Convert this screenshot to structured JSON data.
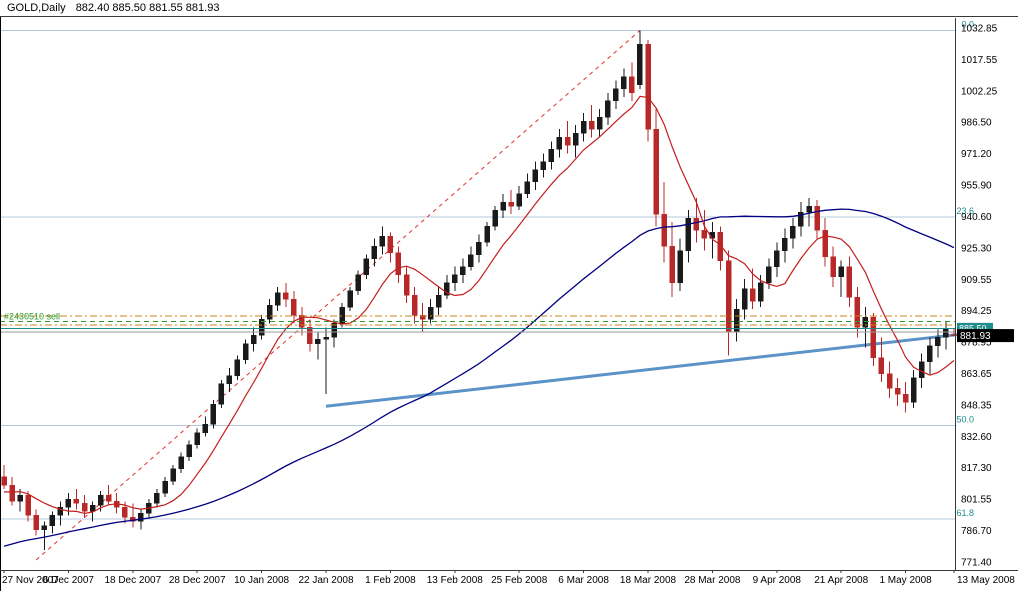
{
  "header": {
    "symbol_period": "GOLD,Daily",
    "ohlc": "882.40 885.50 881.55 881.93"
  },
  "axes": {
    "y_labels": [
      "1032.85",
      "1017.55",
      "1002.25",
      "986.50",
      "971.20",
      "955.90",
      "940.60",
      "925.30",
      "909.55",
      "894.25",
      "878.95",
      "863.65",
      "848.35",
      "832.60",
      "817.30",
      "801.55",
      "786.70",
      "771.40"
    ],
    "x_labels": [
      {
        "index": 0,
        "label": "27 Nov 2007"
      },
      {
        "index": 8,
        "label": "6 Dec 2007"
      },
      {
        "index": 16,
        "label": "18 Dec 2007"
      },
      {
        "index": 24,
        "label": "28 Dec 2007"
      },
      {
        "index": 32,
        "label": "10 Jan 2008"
      },
      {
        "index": 40,
        "label": "22 Jan 2008"
      },
      {
        "index": 48,
        "label": "1 Feb 2008"
      },
      {
        "index": 56,
        "label": "13 Feb 2008"
      },
      {
        "index": 64,
        "label": "25 Feb 2008"
      },
      {
        "index": 72,
        "label": "6 Mar 2008"
      },
      {
        "index": 80,
        "label": "18 Mar 2008"
      },
      {
        "index": 88,
        "label": "28 Mar 2008"
      },
      {
        "index": 96,
        "label": "9 Apr 2008"
      },
      {
        "index": 104,
        "label": "21 Apr 2008"
      },
      {
        "index": 112,
        "label": "1 May 2008"
      },
      {
        "index": 118,
        "label": "13 May 2008"
      }
    ]
  },
  "markers": {
    "bid_box": {
      "value": "881.93",
      "price": 881.93
    },
    "ask_box": {
      "value": "885.50",
      "price": 885.5
    }
  },
  "colors": {
    "bull": "#1a1a1a",
    "bear": "#b92828",
    "ma_fast": "#c41e1e",
    "ma_slow": "#000080",
    "fib_line": "#b4c8dc",
    "fib_label": "#1e8c8c",
    "trend_red": "#e03030",
    "trend_blue": "#5b93c9",
    "sell_line": "#2a9a2a",
    "order_orange": "#c8861e",
    "gray_line": "#9a9a9a",
    "axis_text": "#000000",
    "frame": "#3a3a3a",
    "bid_box_bg": "#000000",
    "bid_box_text": "#ffffff",
    "ask_box_bg": "#1e8c8c",
    "ask_box_text": "#ffffff"
  },
  "chart_data": {
    "type": "candlestick",
    "symbol": "GOLD",
    "timeframe": "Daily",
    "title": "GOLD,Daily",
    "last_ohlc": {
      "open": 882.4,
      "high": 885.5,
      "low": 881.55,
      "close": 881.93
    },
    "y_range": {
      "price_at_top": 1039.0,
      "price_at_bottom": 766.0
    },
    "candles": [
      [
        812,
        818,
        806,
        808
      ],
      [
        808,
        812,
        798,
        800
      ],
      [
        800,
        806,
        795,
        803
      ],
      [
        803,
        805,
        790,
        793
      ],
      [
        793,
        796,
        783,
        786
      ],
      [
        786,
        790,
        776,
        788
      ],
      [
        788,
        795,
        784,
        793
      ],
      [
        793,
        800,
        788,
        797
      ],
      [
        797,
        804,
        793,
        801
      ],
      [
        801,
        806,
        796,
        799
      ],
      [
        799,
        803,
        792,
        795
      ],
      [
        795,
        800,
        790,
        798
      ],
      [
        798,
        805,
        795,
        803
      ],
      [
        803,
        808,
        798,
        800
      ],
      [
        800,
        804,
        794,
        797
      ],
      [
        797,
        800,
        789,
        792
      ],
      [
        792,
        799,
        787,
        790
      ],
      [
        790,
        796,
        786,
        794
      ],
      [
        794,
        801,
        792,
        799
      ],
      [
        799,
        806,
        797,
        804
      ],
      [
        804,
        812,
        802,
        810
      ],
      [
        810,
        818,
        808,
        816
      ],
      [
        816,
        824,
        814,
        822
      ],
      [
        822,
        830,
        820,
        828
      ],
      [
        828,
        836,
        826,
        834
      ],
      [
        834,
        842,
        832,
        838
      ],
      [
        838,
        850,
        836,
        848
      ],
      [
        848,
        860,
        846,
        858
      ],
      [
        858,
        866,
        854,
        862
      ],
      [
        862,
        872,
        860,
        870
      ],
      [
        870,
        880,
        868,
        878
      ],
      [
        878,
        886,
        874,
        882
      ],
      [
        882,
        892,
        880,
        890
      ],
      [
        890,
        900,
        888,
        897
      ],
      [
        897,
        906,
        894,
        903
      ],
      [
        903,
        908,
        896,
        900
      ],
      [
        900,
        904,
        888,
        892
      ],
      [
        892,
        896,
        882,
        886
      ],
      [
        886,
        890,
        874,
        878
      ],
      [
        878,
        884,
        870,
        880
      ],
      [
        880,
        886,
        853,
        881
      ],
      [
        881,
        890,
        876,
        888
      ],
      [
        888,
        898,
        886,
        896
      ],
      [
        896,
        906,
        894,
        904
      ],
      [
        904,
        914,
        902,
        912
      ],
      [
        912,
        922,
        910,
        920
      ],
      [
        920,
        930,
        916,
        926
      ],
      [
        926,
        936,
        922,
        931
      ],
      [
        931,
        933,
        918,
        923
      ],
      [
        923,
        926,
        908,
        912
      ],
      [
        912,
        916,
        898,
        902
      ],
      [
        902,
        906,
        888,
        892
      ],
      [
        892,
        898,
        884,
        890
      ],
      [
        890,
        900,
        888,
        896
      ],
      [
        896,
        906,
        892,
        902
      ],
      [
        902,
        912,
        900,
        908
      ],
      [
        908,
        916,
        904,
        912
      ],
      [
        912,
        920,
        908,
        916
      ],
      [
        916,
        926,
        914,
        922
      ],
      [
        922,
        932,
        918,
        928
      ],
      [
        928,
        938,
        926,
        936
      ],
      [
        936,
        946,
        934,
        944
      ],
      [
        944,
        952,
        940,
        948
      ],
      [
        948,
        954,
        942,
        946
      ],
      [
        946,
        956,
        944,
        952
      ],
      [
        952,
        962,
        950,
        958
      ],
      [
        958,
        968,
        954,
        964
      ],
      [
        964,
        972,
        960,
        968
      ],
      [
        968,
        978,
        964,
        974
      ],
      [
        974,
        984,
        970,
        980
      ],
      [
        980,
        988,
        972,
        976
      ],
      [
        976,
        986,
        970,
        982
      ],
      [
        982,
        992,
        978,
        988
      ],
      [
        988,
        996,
        980,
        984
      ],
      [
        984,
        994,
        980,
        990
      ],
      [
        990,
        1002,
        986,
        998
      ],
      [
        998,
        1008,
        994,
        1004
      ],
      [
        1004,
        1014,
        1000,
        1010
      ],
      [
        1010,
        1017,
        998,
        1002
      ],
      [
        1006,
        1032.85,
        1004,
        1026
      ],
      [
        1026,
        1028,
        978,
        984
      ],
      [
        984,
        994,
        936,
        942
      ],
      [
        942,
        958,
        918,
        926
      ],
      [
        926,
        938,
        901,
        908
      ],
      [
        908,
        930,
        904,
        924
      ],
      [
        924,
        944,
        918,
        940
      ],
      [
        940,
        950,
        928,
        934
      ],
      [
        934,
        944,
        924,
        930
      ],
      [
        930,
        938,
        920,
        933
      ],
      [
        933,
        936,
        914,
        919
      ],
      [
        919,
        924,
        872,
        884
      ],
      [
        884,
        900,
        879,
        895
      ],
      [
        895,
        910,
        890,
        905
      ],
      [
        905,
        915,
        895,
        899
      ],
      [
        899,
        912,
        896,
        908
      ],
      [
        908,
        920,
        905,
        916
      ],
      [
        916,
        928,
        911,
        924
      ],
      [
        924,
        935,
        918,
        930
      ],
      [
        930,
        940,
        925,
        936
      ],
      [
        936,
        948,
        931,
        943
      ],
      [
        943,
        950,
        936,
        946
      ],
      [
        946,
        949,
        930,
        934
      ],
      [
        934,
        940,
        916,
        921
      ],
      [
        921,
        926,
        906,
        911
      ],
      [
        911,
        919,
        901,
        916
      ],
      [
        916,
        921,
        896,
        901
      ],
      [
        901,
        906,
        881,
        886
      ],
      [
        886,
        896,
        876,
        891
      ],
      [
        891,
        893,
        867,
        871
      ],
      [
        871,
        881,
        859,
        863
      ],
      [
        863,
        869,
        851,
        856
      ],
      [
        856,
        861,
        847,
        853
      ],
      [
        853,
        859,
        844,
        849
      ],
      [
        849,
        865,
        846,
        861
      ],
      [
        861,
        873,
        856,
        869
      ],
      [
        869,
        881,
        863,
        877
      ],
      [
        877,
        885,
        871,
        881
      ],
      [
        881,
        889,
        875,
        885
      ],
      [
        882.4,
        885.5,
        881.55,
        881.93
      ]
    ],
    "overlays": {
      "ma_fast": {
        "period": 8
      },
      "ma_slow": {
        "period": 50
      },
      "pre_history": {
        "start": 745,
        "end": 808,
        "len": 50
      },
      "trendlines": [
        {
          "name": "ascending-red-dashed-trendline",
          "from": {
            "i": 4,
            "price": 771
          },
          "to": {
            "i": 79,
            "price": 1032.85
          },
          "dash": "4 4",
          "width": 1,
          "colorKey": "trend_red"
        },
        {
          "name": "support-blue-thick-trendline",
          "from": {
            "i": 40,
            "price": 847
          },
          "to": {
            "i": 118.6,
            "price": 882.5
          },
          "dash": "",
          "width": 3,
          "colorKey": "trend_blue"
        }
      ],
      "hlines": [
        {
          "name": "orange-dashdot-upper-line",
          "price": 891.5,
          "dash": "7 3 2 3",
          "width": 1,
          "colorKey": "order_orange",
          "label": ""
        },
        {
          "name": "sell-order-line",
          "price": 888.8,
          "dash": "5 4",
          "width": 1,
          "colorKey": "sell_line",
          "label": "#2430510 sell"
        },
        {
          "name": "orange-dashdot-lower-line",
          "price": 887.2,
          "dash": "7 3 2 3",
          "width": 1,
          "colorKey": "order_orange",
          "label": ""
        },
        {
          "name": "teal-level-line",
          "price": 885.5,
          "dash": "",
          "width": 1,
          "colorKey": "ask_box_bg",
          "label": ""
        },
        {
          "name": "gray-level-line",
          "price": 883.6,
          "dash": "",
          "width": 1,
          "colorKey": "gray_line",
          "label": ""
        }
      ],
      "fib_levels": [
        {
          "label": "0.0",
          "price": 1032.85
        },
        {
          "label": "23.6",
          "price": 940.58
        },
        {
          "label": "50.0",
          "price": 837.35
        },
        {
          "label": "61.8",
          "price": 791.2
        }
      ]
    }
  }
}
